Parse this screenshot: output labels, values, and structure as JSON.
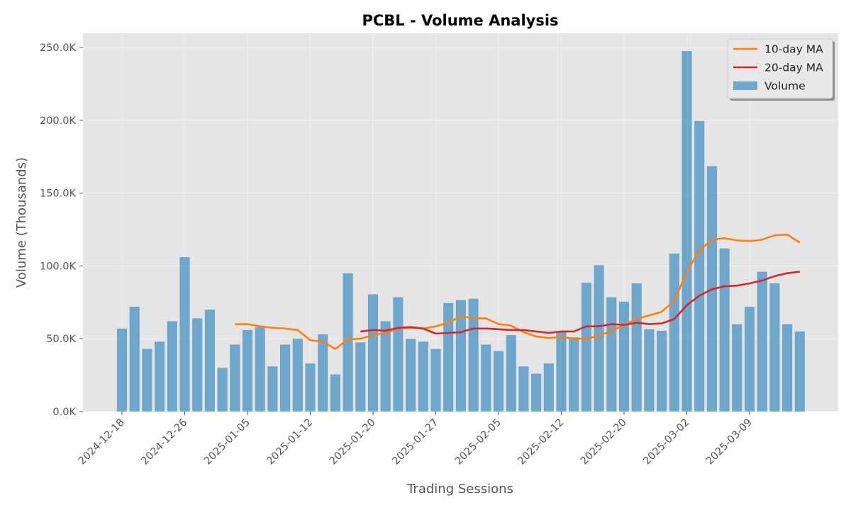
{
  "chart_data": {
    "type": "bar",
    "title": "PCBL - Volume Analysis",
    "xlabel": "Trading Sessions",
    "ylabel": "Volume (Thousands)",
    "ylim": [
      0,
      260000
    ],
    "yticks": [
      0,
      50000,
      100000,
      150000,
      200000,
      250000
    ],
    "ytick_labels": [
      "0.0K",
      "50.0K",
      "100.0K",
      "150.0K",
      "200.0K",
      "250.0K"
    ],
    "xtick_labels": [
      "2024-12-18",
      "2024-12-26",
      "2025-01-05",
      "2025-01-12",
      "2025-01-20",
      "2025-01-27",
      "2025-02-05",
      "2025-02-12",
      "2025-02-20",
      "2025-03-02",
      "2025-03-09"
    ],
    "xtick_positions": [
      0,
      5,
      10,
      15,
      20,
      25,
      30,
      35,
      40,
      45,
      50
    ],
    "grid": true,
    "legend_position": "top-right",
    "series": [
      {
        "name": "Volume",
        "type": "bar",
        "color": "#5b9bc8",
        "values": [
          57000,
          72000,
          43000,
          48000,
          62000,
          106000,
          64000,
          70000,
          30000,
          46000,
          56000,
          58000,
          31000,
          46000,
          50000,
          33000,
          53000,
          25500,
          95000,
          47500,
          80500,
          62000,
          78500,
          50000,
          48000,
          43000,
          74500,
          76500,
          77500,
          46000,
          41500,
          52500,
          31000,
          26000,
          33000,
          55000,
          51000,
          88500,
          100500,
          78500,
          75500,
          88000,
          56500,
          55500,
          108500,
          247500,
          199500,
          168500,
          112000,
          60000,
          72000,
          96000,
          88000,
          60000,
          55000
        ]
      },
      {
        "name": "10-day MA",
        "type": "line",
        "color": "#ff7f0e",
        "start_index": 9,
        "values": [
          60000,
          60000,
          58500,
          57500,
          57000,
          56000,
          49000,
          48000,
          43000,
          49500,
          50000,
          52500,
          54000,
          57000,
          57500,
          57000,
          58500,
          61000,
          65500,
          64000,
          64000,
          60000,
          59000,
          54500,
          51500,
          50500,
          51000,
          50000,
          50000,
          52000,
          55500,
          59500,
          63500,
          66000,
          68500,
          76000,
          96000,
          110500,
          118000,
          119000,
          117500,
          117000,
          118000,
          121000,
          121500,
          116000
        ]
      },
      {
        "name": "20-day MA",
        "type": "line",
        "color": "#d62728",
        "start_index": 19,
        "values": [
          55000,
          56000,
          55500,
          57500,
          58000,
          57000,
          53500,
          54000,
          54500,
          57000,
          57000,
          56500,
          56000,
          56000,
          55000,
          54000,
          55000,
          55000,
          58500,
          58500,
          60000,
          59500,
          61000,
          60000,
          60500,
          63500,
          73000,
          79500,
          84000,
          86000,
          86500,
          88000,
          90000,
          93000,
          95000,
          96000
        ]
      }
    ]
  }
}
